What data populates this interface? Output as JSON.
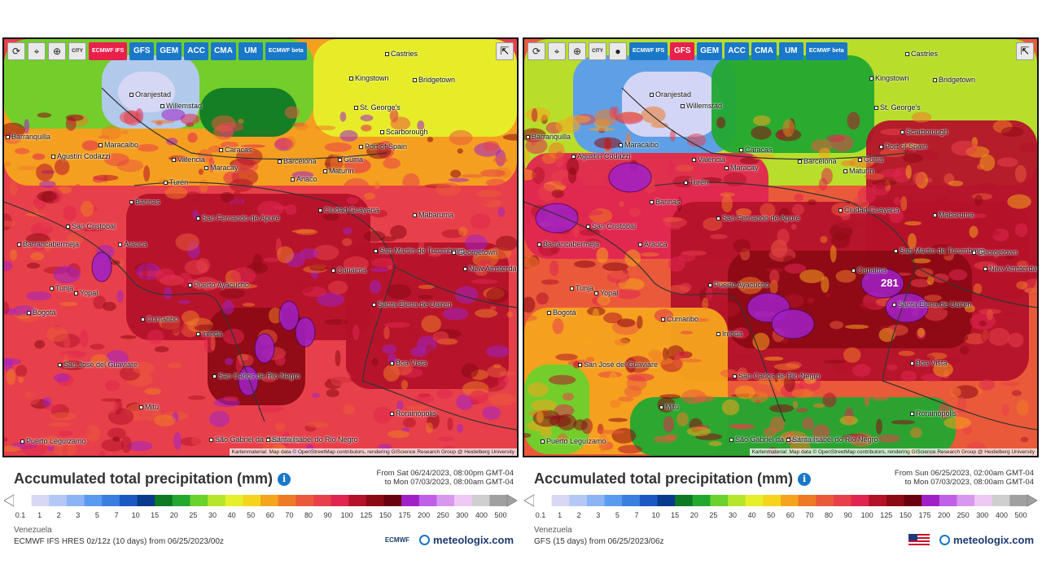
{
  "colors": {
    "scale": [
      "#ffffff",
      "#d8d8f5",
      "#b4c8f5",
      "#8cb4f5",
      "#5a9bef",
      "#3a7fe0",
      "#1b58c2",
      "#0a3a8c",
      "#0f7a24",
      "#22a830",
      "#6bd12c",
      "#b5e62a",
      "#e6f02a",
      "#f5d41e",
      "#f5a41e",
      "#ef7a26",
      "#ea5a3a",
      "#e8404a",
      "#e02650",
      "#b4122a",
      "#8c0a14",
      "#6a0010",
      "#a020c8",
      "#c060e8",
      "#d898f0",
      "#f0c8f5",
      "#cfcfcf",
      "#a0a0a0"
    ]
  },
  "left": {
    "toolbar": {
      "icons": [
        "refresh-icon",
        "location-pin-icon",
        "zoom-icon",
        "city-toggle-icon"
      ],
      "city_label": "CITY",
      "models": [
        {
          "label": "ECMWF IFS",
          "active": true,
          "small": true
        },
        {
          "label": "GFS",
          "active": false,
          "small": false
        },
        {
          "label": "GEM",
          "active": false,
          "small": false
        },
        {
          "label": "ACC",
          "active": false,
          "small": false
        },
        {
          "label": "CMA",
          "active": false,
          "small": false
        },
        {
          "label": "UM",
          "active": false,
          "small": false
        },
        {
          "label": "ECMWF beta",
          "active": false,
          "small": true
        }
      ]
    },
    "map": {
      "cities": [
        "Castries",
        "Oranjestad",
        "Willemstad",
        "Kingstown",
        "Bridgetown",
        "St. George's",
        "Scarborough",
        "Port of Spain",
        "Barranquilla",
        "Maracaibo",
        "Agustín Codazzi",
        "Valencia",
        "Caracas",
        "Maracay",
        "Barcelona",
        "Güiria",
        "Anaco",
        "Maturín",
        "Turén",
        "Barinas",
        "San Fernando de Apure",
        "Ciudad Guayana",
        "Mabaruma",
        "San Cristóbal",
        "Barrancabermeja",
        "Arauca",
        "San Martín de Turumbang",
        "Georgetown",
        "New Amsterdam",
        "Canaima",
        "Tunja",
        "Yopal",
        "Puerto Ayacucho",
        "Bogotá",
        "Santa Elena de Uairen",
        "Cumaribo",
        "Inírida",
        "Boa Vista",
        "San José del Guaviare",
        "San Carlos de Río Negro",
        "Mitú",
        "Rorainópolis",
        "Puerto Leguízamo",
        "São Gabriel da Cachoeira",
        "Santa Isabel do Rio Negro"
      ],
      "highlight_value": "",
      "attribution": "Kartenmaterial: Map data © OpenStreetMap contributors, rendering GIScience Research Group @ Heidelberg University"
    },
    "legend": {
      "title": "Accumulated total precipitation (mm)",
      "period_line1": "From Sat 06/24/2023, 08:00pm GMT-04",
      "period_line2": "to Mon 07/03/2023, 08:00am GMT-04",
      "region": "Venezuela",
      "model_run": "ECMWF IFS HRES 0z/12z (10 days) from 06/25/2023/00z",
      "source_label": "ECMWF",
      "brand": "meteologix.com"
    }
  },
  "right": {
    "toolbar": {
      "icons": [
        "refresh-icon",
        "location-pin-icon",
        "zoom-icon",
        "city-toggle-icon",
        "circle-toggle-icon"
      ],
      "city_label": "CITY",
      "models": [
        {
          "label": "ECMWF IFS",
          "active": false,
          "small": true
        },
        {
          "label": "GFS",
          "active": true,
          "small": false
        },
        {
          "label": "GEM",
          "active": false,
          "small": false
        },
        {
          "label": "ACC",
          "active": false,
          "small": false
        },
        {
          "label": "CMA",
          "active": false,
          "small": false
        },
        {
          "label": "UM",
          "active": false,
          "small": false
        },
        {
          "label": "ECMWF beta",
          "active": false,
          "small": true
        }
      ]
    },
    "map": {
      "cities": [
        "Castries",
        "Oranjestad",
        "Willemstad",
        "Kingstown",
        "Bridgetown",
        "St. George's",
        "Scarborough",
        "Port of Spain",
        "Barranquilla",
        "Maracaibo",
        "Agustín Codazzi",
        "Valencia",
        "Caracas",
        "Maracay",
        "Barcelona",
        "Güiria",
        "Maturín",
        "Turén",
        "Barinas",
        "San Fernando de Apure",
        "Ciudad Guayana",
        "Mabaruma",
        "San Cristóbal",
        "Barrancabermeja",
        "Arauca",
        "San Martín de Turumbang",
        "Georgetown",
        "New Amsterdam",
        "Canaima",
        "Tunja",
        "Yopal",
        "Puerto Ayacucho",
        "Bogotá",
        "Santa Elena de Uairen",
        "Cumaribo",
        "Inírida",
        "Boa Vista",
        "San José del Guaviare",
        "San Carlos de Río Negro",
        "Mitú",
        "Rorainópolis",
        "Puerto Leguízamo",
        "São Gabriel da Cachoeira",
        "Santa Isabel do Rio Negro"
      ],
      "highlight_value": "281",
      "attribution": "Kartenmaterial: Map data © OpenStreetMap contributors, rendering GIScience Research Group @ Heidelberg University"
    },
    "legend": {
      "title": "Accumulated total precipitation (mm)",
      "period_line1": "From Sun 06/25/2023, 02:00am GMT-04",
      "period_line2": "to Mon 07/03/2023, 08:00am GMT-04",
      "region": "Venezuela",
      "model_run": "GFS (15 days) from 06/25/2023/06z",
      "source_label": "",
      "brand": "meteologix.com"
    }
  },
  "scale_ticks": [
    "0.1",
    "1",
    "2",
    "3",
    "5",
    "7",
    "10",
    "15",
    "20",
    "25",
    "30",
    "40",
    "50",
    "60",
    "70",
    "80",
    "90",
    "100",
    "125",
    "150",
    "175",
    "200",
    "250",
    "300",
    "400",
    "500"
  ]
}
